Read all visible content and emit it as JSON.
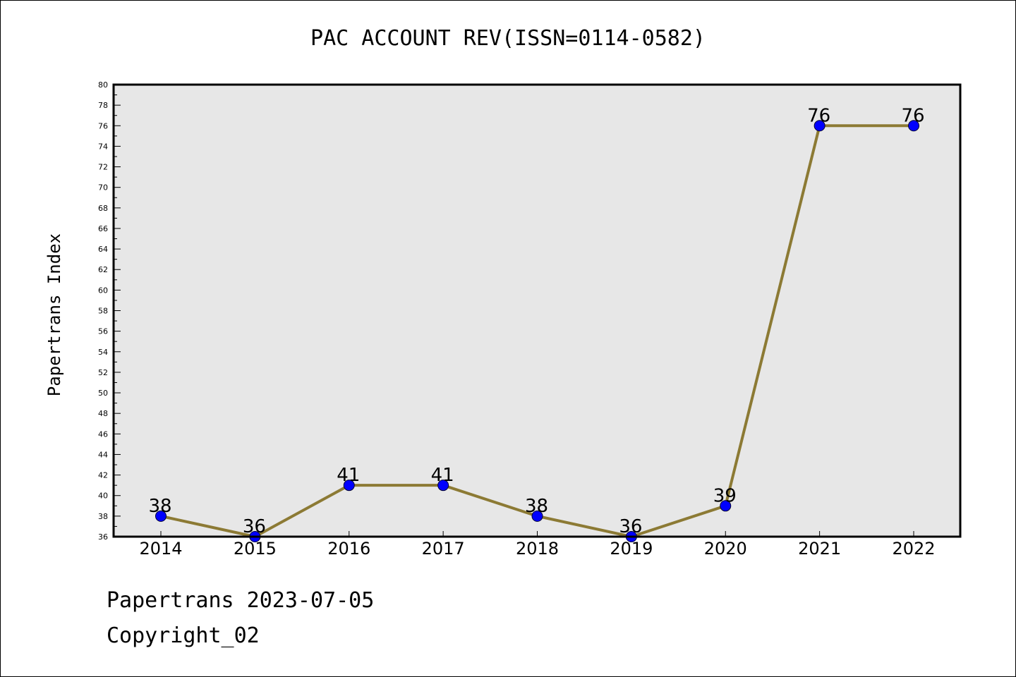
{
  "chart_data": {
    "type": "line",
    "title": "PAC ACCOUNT REV(ISSN=0114-0582)",
    "ylabel": "Papertrans Index",
    "xlabel": "",
    "categories": [
      "2014",
      "2015",
      "2016",
      "2017",
      "2018",
      "2019",
      "2020",
      "2021",
      "2022"
    ],
    "series": [
      {
        "values": [
          38,
          36,
          41,
          41,
          38,
          36,
          39,
          76,
          76
        ]
      }
    ],
    "ylim": [
      36,
      80
    ],
    "yticks": [
      36,
      38,
      40,
      42,
      44,
      46,
      48,
      50,
      52,
      54,
      56,
      58,
      60,
      62,
      64,
      66,
      68,
      70,
      72,
      74,
      76,
      78,
      80
    ],
    "data_labels": true,
    "grid": false,
    "legend": "none"
  },
  "colors": {
    "plot_background": "#e7e7e7",
    "line": "#8c7a34",
    "marker": "#0000ff"
  },
  "footer": {
    "date_text": "Papertrans 2023-07-05",
    "copyright_text": "Copyright_02"
  }
}
